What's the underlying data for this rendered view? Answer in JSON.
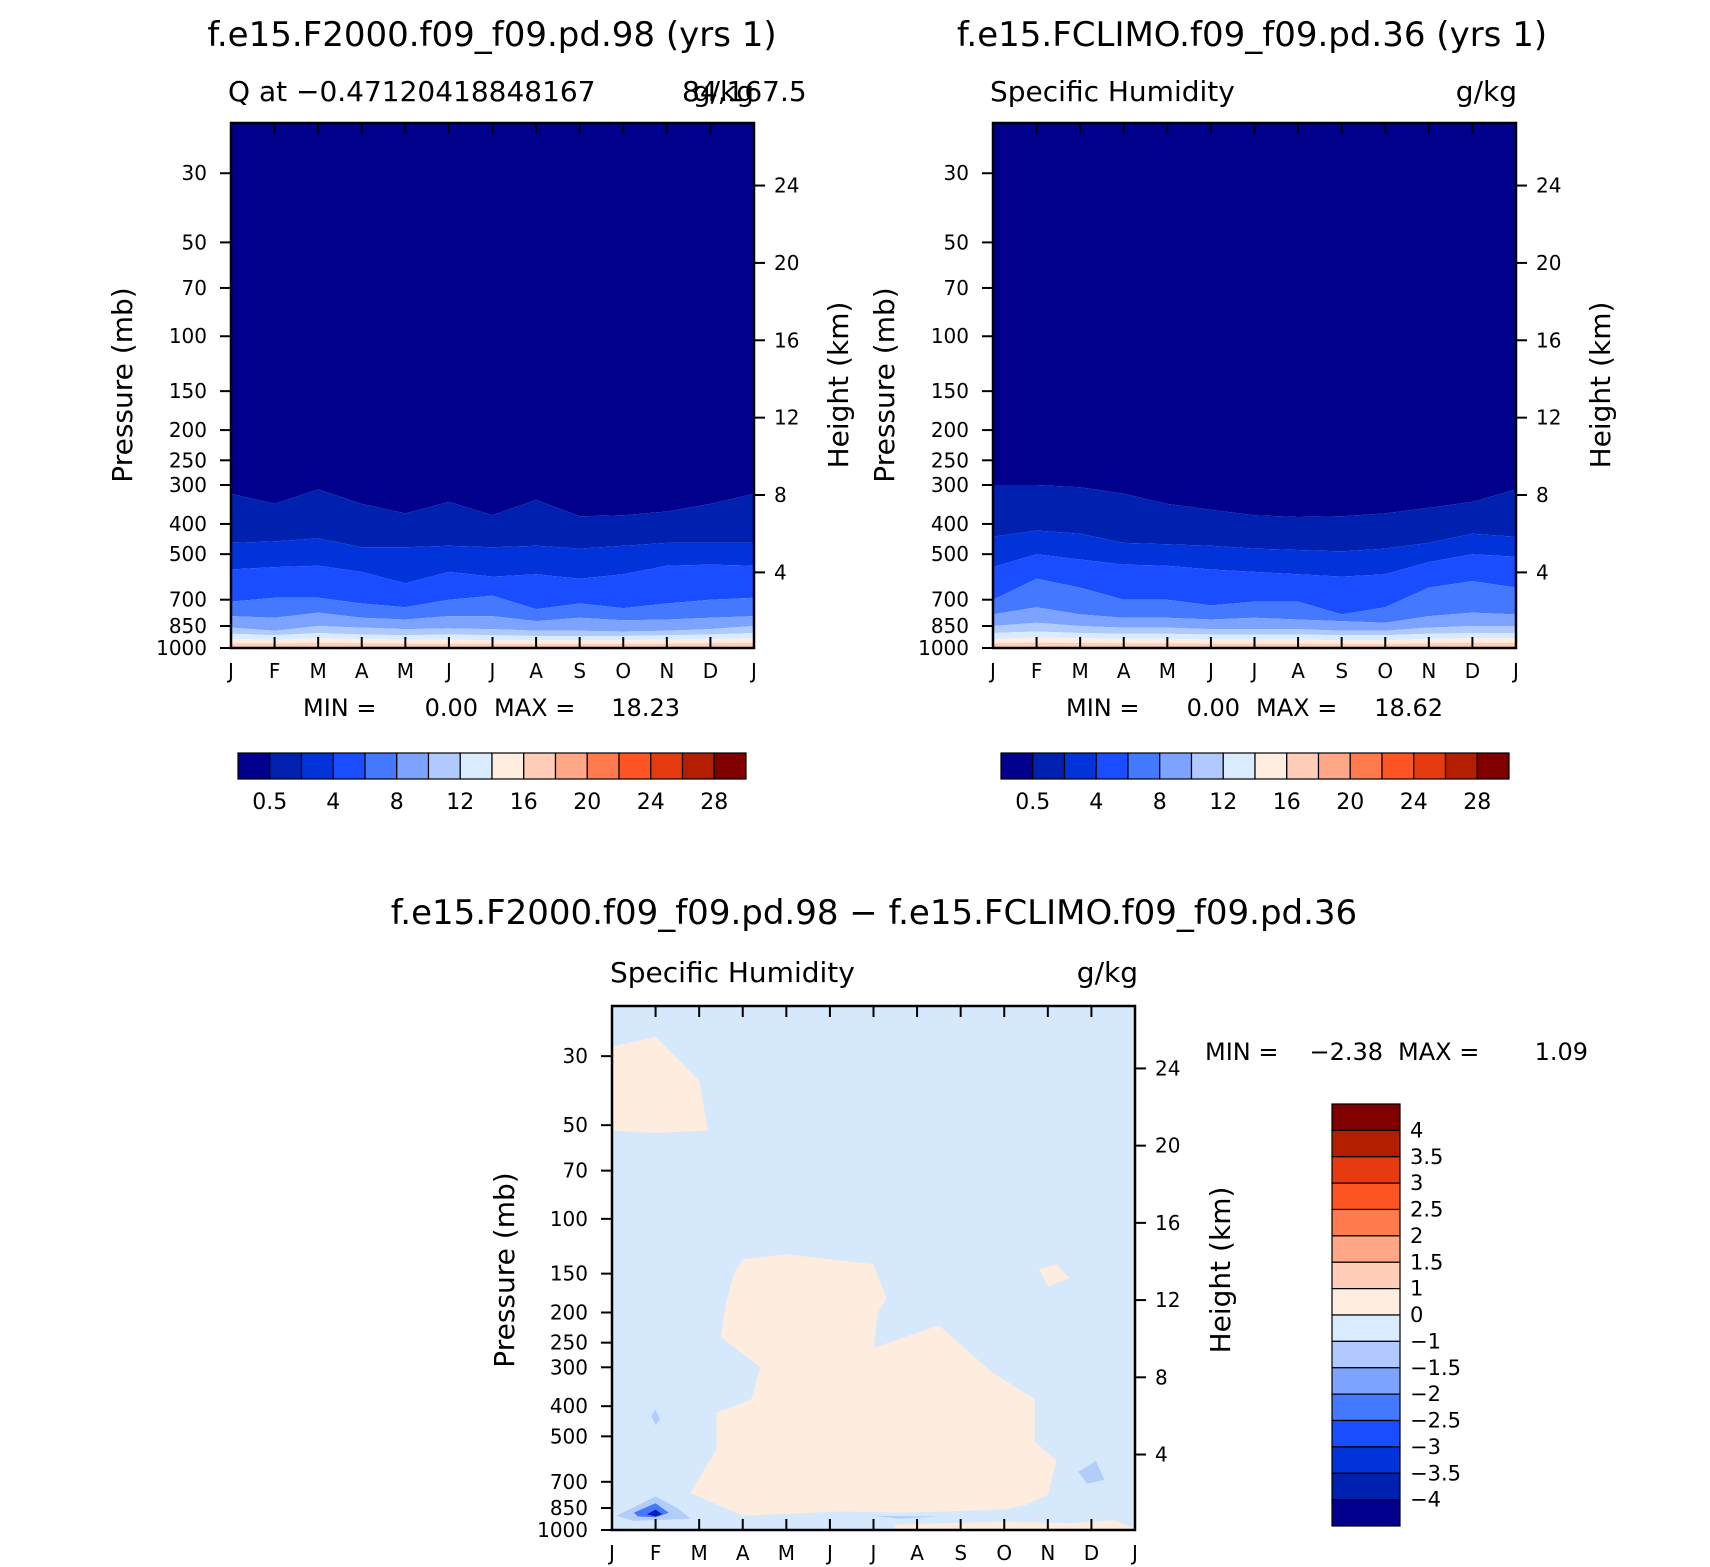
{
  "chart_data": [
    {
      "type": "heatmap",
      "title": "f.e15.F2000.f09_f09.pd.98 (yrs 1)",
      "subtitle_left": "Q at −0.47120418848167",
      "subtitle_overlap": "84,167.5",
      "subtitle_right": "g/kg",
      "ylabel": "Pressure (mb)",
      "ylabel_right": "Height (km)",
      "months": [
        "J",
        "F",
        "M",
        "A",
        "M",
        "J",
        "J",
        "A",
        "S",
        "O",
        "N",
        "D",
        "J"
      ],
      "pressure_ticks": [
        "30",
        "50",
        "70",
        "100",
        "150",
        "200",
        "250",
        "300",
        "400",
        "500",
        "700",
        "850",
        "1000"
      ],
      "height_ticks": [
        "24",
        "20",
        "16",
        "12",
        "8",
        "4"
      ],
      "stats": {
        "min_label": "MIN =",
        "min_value": "0.00",
        "max_label": "MAX =",
        "max_value": "18.23"
      },
      "colorbar_labels": [
        "0.5",
        "4",
        "8",
        "12",
        "16",
        "20",
        "24",
        "28"
      ],
      "contour_boundaries_mb": [
        [
          320,
          345,
          310,
          345,
          370,
          340,
          375,
          335,
          378,
          375,
          365,
          345,
          320
        ],
        [
          460,
          455,
          445,
          475,
          475,
          470,
          475,
          470,
          480,
          470,
          460,
          460,
          460
        ],
        [
          560,
          550,
          545,
          570,
          620,
          570,
          590,
          580,
          600,
          580,
          545,
          540,
          545
        ],
        [
          710,
          690,
          690,
          720,
          740,
          700,
          680,
          750,
          720,
          745,
          720,
          700,
          690
        ],
        [
          790,
          800,
          770,
          800,
          810,
          790,
          790,
          820,
          800,
          815,
          810,
          800,
          790
        ],
        [
          860,
          880,
          850,
          860,
          870,
          865,
          870,
          880,
          880,
          885,
          880,
          870,
          850
        ],
        [
          900,
          910,
          895,
          905,
          910,
          905,
          910,
          915,
          915,
          915,
          910,
          905,
          895
        ],
        [
          935,
          940,
          930,
          935,
          940,
          940,
          945,
          945,
          945,
          945,
          940,
          935,
          930
        ],
        [
          965,
          968,
          962,
          965,
          968,
          968,
          970,
          970,
          970,
          970,
          968,
          965,
          962
        ]
      ]
    },
    {
      "type": "heatmap",
      "title": "f.e15.FCLIMO.f09_f09.pd.36 (yrs 1)",
      "subtitle_left": "Specific Humidity",
      "subtitle_right": "g/kg",
      "ylabel": "Pressure (mb)",
      "ylabel_right": "Height (km)",
      "months": [
        "J",
        "F",
        "M",
        "A",
        "M",
        "J",
        "J",
        "A",
        "S",
        "O",
        "N",
        "D",
        "J"
      ],
      "pressure_ticks": [
        "30",
        "50",
        "70",
        "100",
        "150",
        "200",
        "250",
        "300",
        "400",
        "500",
        "700",
        "850",
        "1000"
      ],
      "height_ticks": [
        "24",
        "20",
        "16",
        "12",
        "8",
        "4"
      ],
      "stats": {
        "min_label": "MIN =",
        "min_value": "0.00",
        "max_label": "MAX =",
        "max_value": "18.62"
      },
      "colorbar_labels": [
        "0.5",
        "4",
        "8",
        "12",
        "16",
        "20",
        "24",
        "28"
      ],
      "contour_boundaries_mb": [
        [
          300,
          300,
          305,
          320,
          345,
          360,
          375,
          380,
          378,
          370,
          355,
          340,
          310
        ],
        [
          440,
          420,
          430,
          460,
          465,
          470,
          480,
          485,
          490,
          480,
          460,
          430,
          440
        ],
        [
          550,
          500,
          520,
          540,
          545,
          560,
          570,
          580,
          590,
          580,
          530,
          500,
          510
        ],
        [
          700,
          600,
          640,
          700,
          700,
          730,
          710,
          710,
          780,
          740,
          640,
          610,
          640
        ],
        [
          780,
          740,
          780,
          800,
          800,
          810,
          800,
          810,
          820,
          830,
          790,
          770,
          780
        ],
        [
          850,
          830,
          850,
          860,
          860,
          870,
          870,
          870,
          880,
          880,
          860,
          850,
          850
        ],
        [
          895,
          885,
          895,
          900,
          900,
          905,
          905,
          905,
          910,
          910,
          900,
          895,
          895
        ],
        [
          935,
          925,
          930,
          935,
          935,
          940,
          940,
          940,
          945,
          945,
          935,
          930,
          930
        ],
        [
          965,
          960,
          963,
          965,
          965,
          968,
          968,
          968,
          970,
          970,
          965,
          962,
          962
        ]
      ]
    },
    {
      "type": "heatmap",
      "title": "f.e15.F2000.f09_f09.pd.98 − f.e15.FCLIMO.f09_f09.pd.36",
      "subtitle_left": "Specific Humidity",
      "subtitle_right": "g/kg",
      "ylabel": "Pressure (mb)",
      "ylabel_right": "Height (km)",
      "months": [
        "J",
        "F",
        "M",
        "A",
        "M",
        "J",
        "J",
        "A",
        "S",
        "O",
        "N",
        "D",
        "J"
      ],
      "pressure_ticks": [
        "30",
        "50",
        "70",
        "100",
        "150",
        "200",
        "250",
        "300",
        "400",
        "500",
        "700",
        "850",
        "1000"
      ],
      "height_ticks": [
        "24",
        "20",
        "16",
        "12",
        "8",
        "4"
      ],
      "stats": {
        "min_label": "MIN =",
        "min_value": "−2.38",
        "max_label": "MAX =",
        "max_value": "1.09"
      },
      "colorbar_labels": [
        "4",
        "3.5",
        "3",
        "2.5",
        "2",
        "1.5",
        "1",
        "0",
        "−1",
        "−1.5",
        "−2",
        "−2.5",
        "−3",
        "−3.5",
        "−4"
      ],
      "positive_regions_month_mb": [
        [
          [
            0,
            28
          ],
          [
            1,
            26
          ],
          [
            2,
            36
          ],
          [
            2.2,
            52
          ],
          [
            1,
            53
          ],
          [
            0,
            52
          ]
        ],
        [
          [
            3,
            135
          ],
          [
            4,
            130
          ],
          [
            6,
            140
          ],
          [
            6.3,
            180
          ],
          [
            6.1,
            200
          ],
          [
            6,
            260
          ],
          [
            7.5,
            220
          ],
          [
            8.7,
            310
          ],
          [
            9.7,
            380
          ],
          [
            9.7,
            520
          ],
          [
            10.2,
            600
          ],
          [
            10,
            770
          ],
          [
            9.5,
            830
          ],
          [
            9,
            860
          ],
          [
            6.5,
            880
          ],
          [
            5.3,
            870
          ],
          [
            3,
            900
          ],
          [
            1.8,
            760
          ],
          [
            2.4,
            550
          ],
          [
            2.4,
            420
          ],
          [
            3.2,
            380
          ],
          [
            3.4,
            300
          ],
          [
            2.5,
            240
          ],
          [
            2.6,
            190
          ],
          [
            2.8,
            150
          ]
        ],
        [
          [
            9.8,
            145
          ],
          [
            10.2,
            140
          ],
          [
            10.5,
            155
          ],
          [
            10,
            165
          ]
        ],
        [
          [
            6.5,
            960
          ],
          [
            9,
            940
          ],
          [
            10.5,
            950
          ],
          [
            11.5,
            930
          ],
          [
            12,
            990
          ],
          [
            8,
            995
          ],
          [
            6.5,
            990
          ]
        ]
      ],
      "negative_regions_month_mb": [
        [
          [
            0.1,
            900
          ],
          [
            1,
            780
          ],
          [
            1.5,
            850
          ],
          [
            1.8,
            920
          ],
          [
            0.5,
            935
          ]
        ],
        [
          [
            0.5,
            880
          ],
          [
            1,
            820
          ],
          [
            1.3,
            880
          ],
          [
            1,
            910
          ],
          [
            0.6,
            905
          ]
        ],
        [
          [
            0.8,
            890
          ],
          [
            1,
            860
          ],
          [
            1.15,
            890
          ],
          [
            1,
            905
          ]
        ],
        [
          [
            0.9,
            430
          ],
          [
            1,
            410
          ],
          [
            1.1,
            440
          ],
          [
            1,
            460
          ]
        ],
        [
          [
            10.7,
            650
          ],
          [
            11.1,
            600
          ],
          [
            11.3,
            690
          ],
          [
            10.9,
            710
          ]
        ],
        [
          [
            6,
            900
          ],
          [
            7.5,
            905
          ],
          [
            6.6,
            920
          ]
        ]
      ]
    }
  ],
  "colors": {
    "abs_palette": [
      "#00008c",
      "#0021b0",
      "#0033d9",
      "#1a4dff",
      "#4479ff",
      "#7ca3ff",
      "#b0c9ff",
      "#d9ecff",
      "#ffede0",
      "#ffcdb8",
      "#ffa786",
      "#ff7a4d",
      "#ff5424",
      "#e63a10",
      "#b31e00",
      "#800000"
    ],
    "diff_palette_top_to_bottom": [
      "#800000",
      "#b31e00",
      "#e63a10",
      "#ff5424",
      "#ff7a4d",
      "#ffa786",
      "#ffcdb8",
      "#ffede0",
      "#d9ecff",
      "#b0c9ff",
      "#7ca3ff",
      "#4479ff",
      "#1a4dff",
      "#0033d9",
      "#0021b0",
      "#00008c"
    ],
    "diff_background": "#d6e9fc",
    "diff_positive": "#feeddf",
    "diff_negative": "#b3cdfb"
  }
}
